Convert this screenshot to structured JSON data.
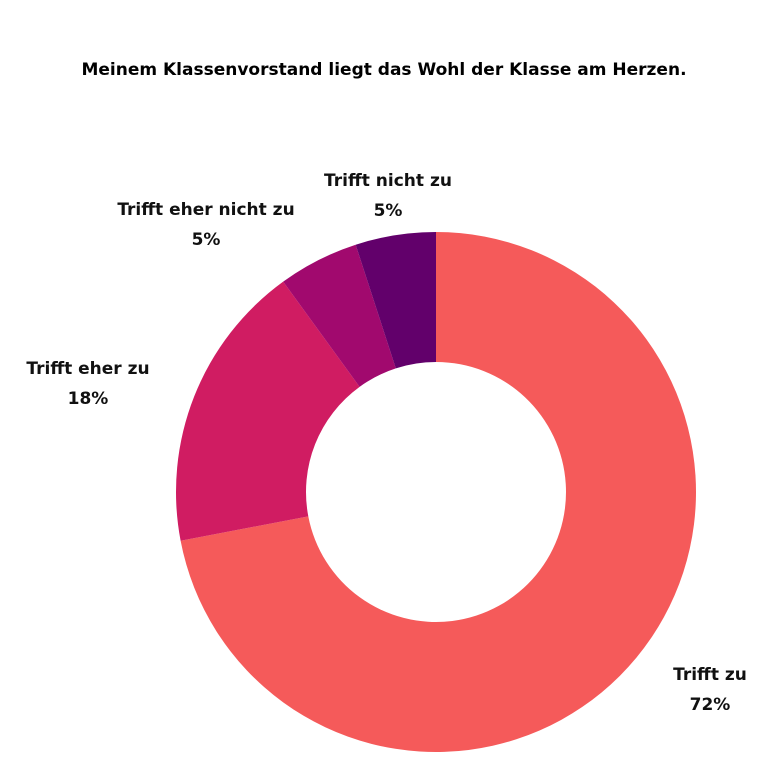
{
  "chart_data": {
    "type": "pie",
    "style": "donut",
    "title": "Meinem Klassenvorstand liegt das Wohl der Klasse am Herzen.",
    "slices": [
      {
        "label": "Trifft zu",
        "value": 72,
        "value_label": "72%",
        "color": "#f55a5a"
      },
      {
        "label": "Trifft eher zu",
        "value": 18,
        "value_label": "18%",
        "color": "#d01c62"
      },
      {
        "label": "Trifft eher nicht zu",
        "value": 5,
        "value_label": "5%",
        "color": "#a1096e"
      },
      {
        "label": "Trifft nicht zu",
        "value": 5,
        "value_label": "5%",
        "color": "#62006b"
      }
    ]
  }
}
